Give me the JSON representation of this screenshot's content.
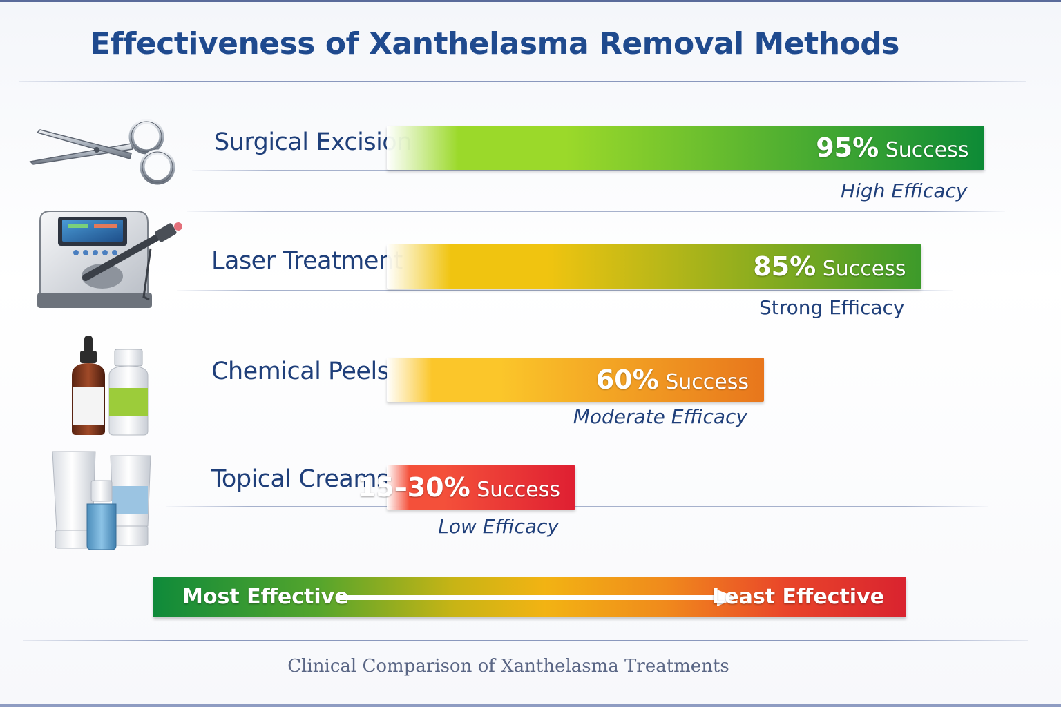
{
  "header": {
    "title": "Effectiveness of Xanthelasma Removal Methods"
  },
  "chart_data": {
    "type": "bar",
    "orientation": "horizontal",
    "title": "Effectiveness of Xanthelasma Removal Methods",
    "categories": [
      "Surgical Excision",
      "Laser Treatment",
      "Chemical Peels",
      "Topical Creams"
    ],
    "values": [
      95,
      85,
      60,
      30
    ],
    "value_labels": [
      {
        "num": "95%",
        "suffix": " Success"
      },
      {
        "num": "85%",
        "suffix": " Success"
      },
      {
        "num": "60%",
        "suffix": " Success"
      },
      {
        "num": "15–30%",
        "suffix": " Success"
      }
    ],
    "efficacy_labels": [
      "High Efficacy",
      "Strong Efficacy",
      "Moderate Efficacy",
      "Low Efficacy"
    ],
    "range_low": [
      95,
      85,
      60,
      15
    ],
    "range_high": [
      95,
      85,
      60,
      30
    ],
    "bar_colors": [
      [
        "#9bd92a",
        "#0d8a36"
      ],
      [
        "#f0c410",
        "#3c9a2a"
      ],
      [
        "#fbc62a",
        "#e8761c"
      ],
      [
        "#f4503a",
        "#df1f32"
      ]
    ],
    "icons": [
      "scissors-icon",
      "laser-device-icon",
      "bottles-icon",
      "cream-tubes-icon"
    ]
  },
  "legend": {
    "left_label": "Most Effective",
    "right_label": "Least Effective"
  },
  "footer": {
    "caption": "Clinical Comparison of Xanthelasma Treatments"
  }
}
